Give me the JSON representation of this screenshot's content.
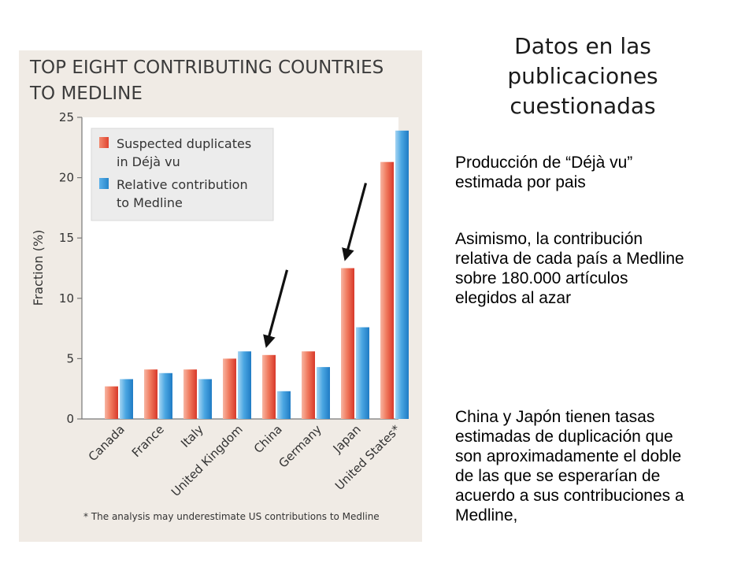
{
  "slide": {
    "title_lines": [
      "Datos en las",
      "publicaciones",
      "cuestionadas"
    ],
    "paragraph1": [
      "Producción de “Déjà vu”",
      "estimada por pais"
    ],
    "paragraph2": [
      "Asimismo, la contribución",
      "relativa de cada país a Medline",
      "sobre 180.000 artículos",
      "elegidos al azar"
    ],
    "paragraph3": [
      "China y Japón tienen tasas",
      "estimadas de duplicación que",
      "son aproximadamente el doble",
      "de las que se esperarían de",
      "acuerdo a sus contribuciones a",
      "Medline,"
    ]
  },
  "chart_data": {
    "type": "bar",
    "title_lines": [
      "TOP EIGHT CONTRIBUTING COUNTRIES",
      "TO MEDLINE"
    ],
    "xlabel": "",
    "ylabel": "Fraction (%)",
    "ylim": [
      0,
      25
    ],
    "yticks": [
      "0",
      "5",
      "10",
      "15",
      "20",
      "25"
    ],
    "grid": false,
    "legend_position": "top-left",
    "categories": [
      "Canada",
      "France",
      "Italy",
      "United Kingdom",
      "China",
      "Germany",
      "Japan",
      "United States*"
    ],
    "series": [
      {
        "name_lines": [
          "Suspected duplicates",
          "in Déjà vu"
        ],
        "color": "#e8553c",
        "values": [
          2.7,
          4.1,
          4.1,
          5.0,
          5.3,
          5.6,
          12.5,
          21.3
        ]
      },
      {
        "name_lines": [
          "Relative contribution",
          "to Medline"
        ],
        "color": "#2f8fd3",
        "values": [
          3.3,
          3.8,
          3.3,
          5.6,
          2.3,
          4.3,
          7.6,
          23.9
        ]
      }
    ],
    "annotations": [
      {
        "type": "arrow",
        "target": "China"
      },
      {
        "type": "arrow",
        "target": "Japan"
      }
    ],
    "footnote": "* The analysis may underestimate US contributions to Medline"
  }
}
